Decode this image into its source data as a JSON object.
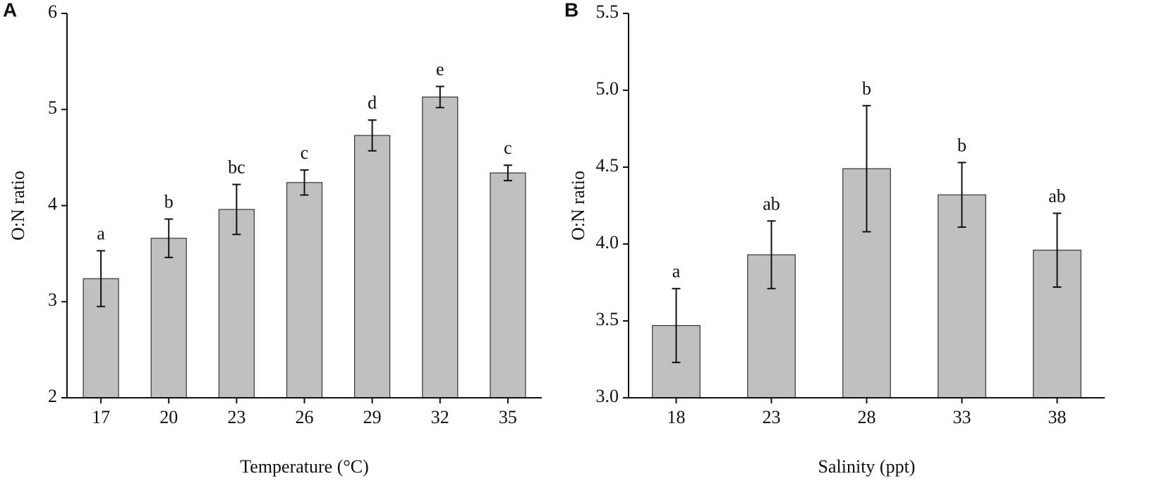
{
  "chart_data": [
    {
      "type": "bar",
      "panel": "A",
      "x_label": "Temperature (°C)",
      "y_label": "O:N ratio",
      "categories": [
        "17",
        "20",
        "23",
        "26",
        "29",
        "32",
        "35"
      ],
      "values": [
        3.24,
        3.66,
        3.96,
        4.24,
        4.73,
        5.13,
        4.34
      ],
      "errors": [
        0.29,
        0.2,
        0.26,
        0.13,
        0.16,
        0.11,
        0.08
      ],
      "letters": [
        "a",
        "b",
        "bc",
        "c",
        "d",
        "e",
        "c"
      ],
      "color": "#c0c0c0",
      "ylim": [
        2,
        6
      ],
      "yticks": [
        2,
        3,
        4,
        5,
        6
      ]
    },
    {
      "type": "bar",
      "panel": "B",
      "x_label": "Salinity (ppt)",
      "y_label": "O:N ratio",
      "categories": [
        "18",
        "23",
        "28",
        "33",
        "38"
      ],
      "values": [
        3.47,
        3.93,
        4.49,
        4.32,
        3.96
      ],
      "errors": [
        0.24,
        0.22,
        0.41,
        0.21,
        0.24
      ],
      "letters": [
        "a",
        "ab",
        "b",
        "b",
        "ab"
      ],
      "color": "#c0c0c0",
      "ylim": [
        3,
        5.5
      ],
      "yticks": [
        {
          "value": 3,
          "label": "3.0"
        },
        3.5,
        {
          "value": 4,
          "label": "4.0"
        },
        4.5,
        {
          "value": 5,
          "label": "5.0"
        },
        5.5
      ]
    }
  ]
}
